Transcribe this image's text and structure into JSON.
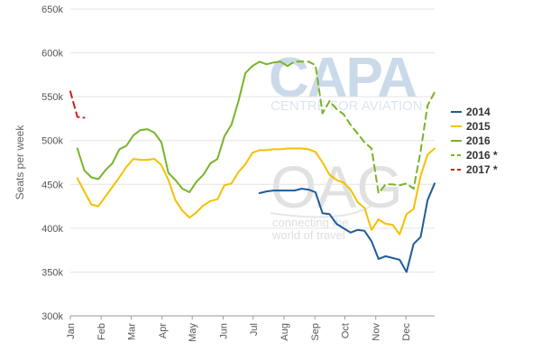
{
  "watermarks": {
    "capa_logo": "CAPA",
    "capa_tagline": "CENTRE FOR AVIATION",
    "oag_logo": "OAG",
    "oag_tagline_1": "connecting the",
    "oag_tagline_2": "world of travel"
  },
  "chart_data": {
    "type": "line",
    "title": "",
    "xlabel": "",
    "ylabel": "Seats per week",
    "xlim": [
      0,
      52
    ],
    "ylim": [
      300000,
      650000
    ],
    "yticks": [
      300000,
      350000,
      400000,
      450000,
      500000,
      550000,
      600000,
      650000
    ],
    "ytick_labels": [
      "300k",
      "350k",
      "400k",
      "450k",
      "500k",
      "550k",
      "600k",
      "650k"
    ],
    "x_categories": [
      "Jan",
      "Feb",
      "Mar",
      "Apr",
      "May",
      "Jun",
      "Jul",
      "Aug",
      "Sep",
      "Oct",
      "Nov",
      "Dec"
    ],
    "x_category_positions": [
      0,
      4.4,
      8.7,
      13.1,
      17.4,
      21.8,
      26.1,
      30.5,
      34.9,
      39.2,
      43.6,
      47.9
    ],
    "grid": {
      "x": false,
      "y": true
    },
    "legend_position": "right",
    "series": [
      {
        "name": "2014",
        "color": "#1f5c99",
        "dash": "solid",
        "x": [
          27,
          28,
          29,
          30,
          31,
          32,
          33,
          34,
          35,
          36,
          37,
          38,
          39,
          40,
          41,
          42,
          43,
          44,
          45,
          46,
          47,
          48,
          49,
          50,
          51,
          52
        ],
        "y": [
          440000,
          442000,
          443000,
          443000,
          443000,
          443000,
          445000,
          444000,
          441000,
          417000,
          416000,
          405000,
          400000,
          395000,
          398000,
          397000,
          385000,
          365000,
          368000,
          366000,
          364000,
          350000,
          382000,
          390000,
          432000,
          451000
        ]
      },
      {
        "name": "2015",
        "color": "#f5c000",
        "dash": "solid",
        "x": [
          1,
          2,
          3,
          4,
          5,
          6,
          7,
          8,
          9,
          10,
          11,
          12,
          13,
          14,
          15,
          16,
          17,
          18,
          19,
          20,
          21,
          22,
          23,
          24,
          25,
          26,
          27,
          28,
          29,
          30,
          31,
          32,
          33,
          34,
          35,
          36,
          37,
          38,
          39,
          40,
          41,
          42,
          43,
          44,
          45,
          46,
          47,
          48,
          49,
          50,
          51,
          52
        ],
        "y": [
          457000,
          442000,
          427000,
          425000,
          436000,
          447000,
          458000,
          470000,
          479000,
          478000,
          478000,
          479000,
          472000,
          455000,
          432000,
          420000,
          412000,
          418000,
          426000,
          431000,
          433000,
          449000,
          451000,
          464000,
          473000,
          486000,
          489000,
          489000,
          490000,
          490000,
          491000,
          491000,
          491000,
          490000,
          487000,
          475000,
          461000,
          455000,
          452000,
          444000,
          430000,
          423000,
          398000,
          410000,
          405000,
          404000,
          393000,
          416000,
          422000,
          460000,
          484000,
          491000
        ]
      },
      {
        "name": "2016",
        "color": "#78b428",
        "dash": "solid",
        "x": [
          1,
          2,
          3,
          4,
          5,
          6,
          7,
          8,
          9,
          10,
          11,
          12,
          13,
          14,
          15,
          16,
          17,
          18,
          19,
          20,
          21,
          22,
          23,
          24,
          25,
          26,
          27,
          28,
          29,
          30,
          31
        ],
        "y": [
          491000,
          466000,
          458000,
          456000,
          466000,
          474000,
          490000,
          494000,
          506000,
          512000,
          513000,
          509000,
          498000,
          463000,
          455000,
          445000,
          441000,
          453000,
          461000,
          474000,
          479000,
          505000,
          518000,
          545000,
          577000,
          585000,
          590000,
          587000,
          589000,
          590000,
          585000
        ]
      },
      {
        "name": "2016 *",
        "color": "#78b428",
        "dash": "dashed",
        "x": [
          31,
          32,
          33,
          34,
          35,
          36,
          37,
          38,
          39,
          40,
          41,
          42,
          43,
          44,
          45,
          46,
          47,
          48,
          49,
          50,
          51,
          52
        ],
        "y": [
          585000,
          590000,
          590000,
          590000,
          586000,
          531000,
          545000,
          536000,
          530000,
          518000,
          508000,
          498000,
          491000,
          440000,
          450000,
          450000,
          449000,
          451000,
          445000,
          488000,
          540000,
          555000
        ]
      },
      {
        "name": "2017 *",
        "color": "#cc1f1f",
        "dash": "dashed",
        "x": [
          0,
          1,
          2
        ],
        "y": [
          556000,
          527000,
          526000
        ]
      }
    ]
  }
}
